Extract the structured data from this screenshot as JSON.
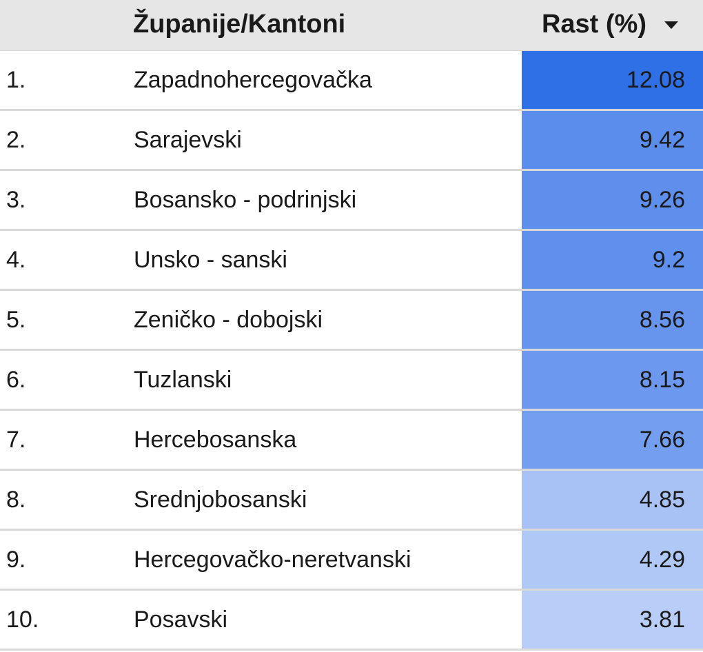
{
  "header": {
    "name_label": "Županije/Kantoni",
    "value_label": "Rast (%)",
    "sort_icon": "triangle-down-icon"
  },
  "chart_data": {
    "type": "table",
    "columns": [
      "",
      "Županije/Kantoni",
      "Rast (%)"
    ],
    "sorted_by": "Rast (%)",
    "sort_direction": "descending",
    "color_scale": {
      "low": "#bdd0f8",
      "high": "#2f70e6"
    },
    "rows": [
      {
        "rank": "1.",
        "name": "Zapadnohercegovačka",
        "value": 12.08,
        "value_label": "12.08",
        "color": "#2f70e6"
      },
      {
        "rank": "2.",
        "name": "Sarajevski",
        "value": 9.42,
        "value_label": "9.42",
        "color": "#5b8ded"
      },
      {
        "rank": "3.",
        "name": "Bosansko - podrinjski",
        "value": 9.26,
        "value_label": "9.26",
        "color": "#5e8fed"
      },
      {
        "rank": "4.",
        "name": "Unsko - sanski",
        "value": 9.2,
        "value_label": "9.2",
        "color": "#5f90ed"
      },
      {
        "rank": "5.",
        "name": "Zeničko - dobojski",
        "value": 8.56,
        "value_label": "8.56",
        "color": "#6795ee"
      },
      {
        "rank": "6.",
        "name": "Tuzlanski",
        "value": 8.15,
        "value_label": "8.15",
        "color": "#6c98ef"
      },
      {
        "rank": "7.",
        "name": "Hercebosanska",
        "value": 7.66,
        "value_label": "7.66",
        "color": "#749ef0"
      },
      {
        "rank": "8.",
        "name": "Srednjobosanski",
        "value": 4.85,
        "value_label": "4.85",
        "color": "#a8c2f5"
      },
      {
        "rank": "9.",
        "name": "Hercegovačko-neretvanski",
        "value": 4.29,
        "value_label": "4.29",
        "color": "#b0c8f6"
      },
      {
        "rank": "10.",
        "name": "Posavski",
        "value": 3.81,
        "value_label": "3.81",
        "color": "#b8cdf7"
      }
    ]
  }
}
